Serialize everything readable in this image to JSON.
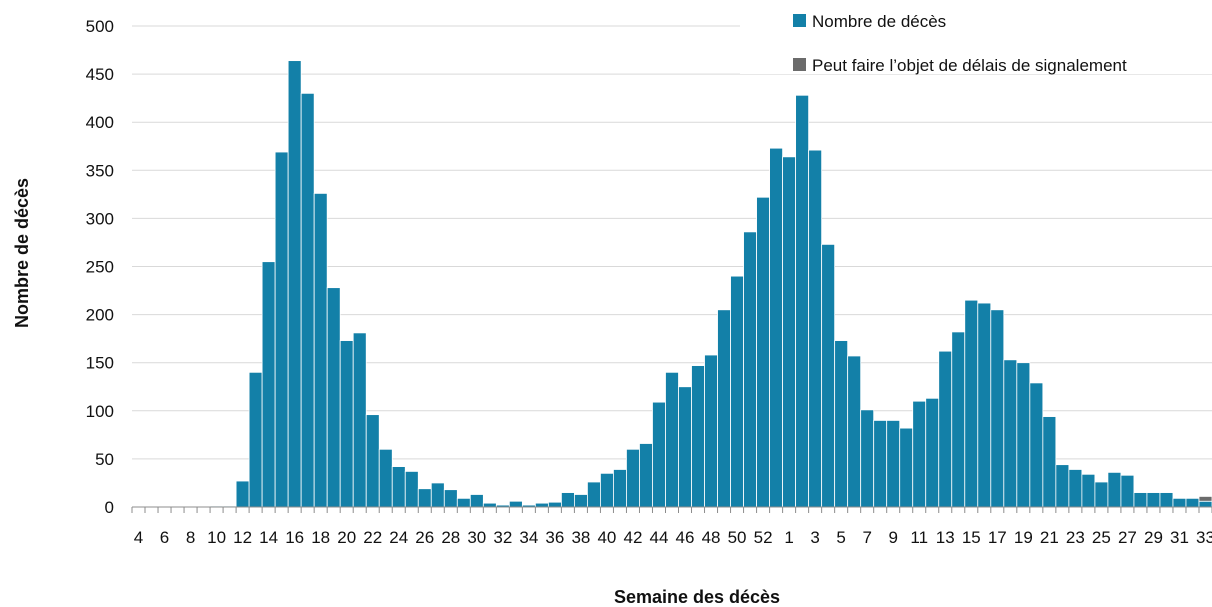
{
  "chart_data": {
    "type": "bar",
    "xlabel": "Semaine des décès",
    "ylabel": "Nombre de décès",
    "ylim": [
      0,
      500
    ],
    "yticks": [
      0,
      50,
      100,
      150,
      200,
      250,
      300,
      350,
      400,
      450,
      500
    ],
    "grid": true,
    "legend_position": "top-right",
    "colors": {
      "deaths": "#1380a8",
      "delay": "#6b6b6b",
      "grid": "#d9d9d9",
      "axis": "#8c8c8c"
    },
    "categories": [
      "4",
      "5",
      "6",
      "7",
      "8",
      "9",
      "10",
      "11",
      "12",
      "13",
      "14",
      "15",
      "16",
      "17",
      "18",
      "19",
      "20",
      "21",
      "22",
      "23",
      "24",
      "25",
      "26",
      "27",
      "28",
      "29",
      "30",
      "31",
      "32",
      "33",
      "34",
      "35",
      "36",
      "37",
      "38",
      "39",
      "40",
      "41",
      "42",
      "43",
      "44",
      "45",
      "46",
      "47",
      "48",
      "49",
      "50",
      "51",
      "52",
      "53",
      "1",
      "2",
      "3",
      "4",
      "5",
      "6",
      "7",
      "8",
      "9",
      "10",
      "11",
      "12",
      "13",
      "14",
      "15",
      "16",
      "17",
      "18",
      "19",
      "20",
      "21",
      "22",
      "23",
      "24",
      "25",
      "26",
      "27",
      "28",
      "29",
      "30",
      "31",
      "32",
      "33"
    ],
    "tick_labels": [
      "4",
      "",
      "6",
      "",
      "8",
      "",
      "10",
      "",
      "12",
      "",
      "14",
      "",
      "16",
      "",
      "18",
      "",
      "20",
      "",
      "22",
      "",
      "24",
      "",
      "26",
      "",
      "28",
      "",
      "30",
      "",
      "32",
      "",
      "34",
      "",
      "36",
      "",
      "38",
      "",
      "40",
      "",
      "42",
      "",
      "44",
      "",
      "46",
      "",
      "48",
      "",
      "50",
      "",
      "52",
      "",
      "1",
      "",
      "3",
      "",
      "5",
      "",
      "7",
      "",
      "9",
      "",
      "11",
      "",
      "13",
      "",
      "15",
      "",
      "17",
      "",
      "19",
      "",
      "21",
      "",
      "23",
      "",
      "25",
      "",
      "27",
      "",
      "29",
      "",
      "31",
      "",
      "33"
    ],
    "series": [
      {
        "name": "Nombre de décès",
        "color": "#1380a8",
        "values": [
          0,
          0,
          0,
          0,
          0,
          0,
          1,
          1,
          27,
          140,
          255,
          369,
          464,
          430,
          326,
          228,
          173,
          181,
          96,
          60,
          42,
          37,
          19,
          25,
          18,
          9,
          13,
          4,
          2,
          6,
          2,
          4,
          5,
          15,
          13,
          26,
          35,
          39,
          60,
          66,
          109,
          140,
          125,
          147,
          158,
          205,
          240,
          286,
          322,
          373,
          364,
          428,
          371,
          273,
          173,
          157,
          101,
          90,
          90,
          82,
          110,
          113,
          162,
          182,
          215,
          212,
          205,
          153,
          150,
          129,
          94,
          44,
          39,
          34,
          26,
          36,
          33,
          15,
          15,
          15,
          9,
          9,
          6
        ]
      },
      {
        "name": "Peut faire l’objet de délais de signalement",
        "color": "#6b6b6b",
        "values": [
          0,
          0,
          0,
          0,
          0,
          0,
          0,
          0,
          0,
          0,
          0,
          0,
          0,
          0,
          0,
          0,
          0,
          0,
          0,
          0,
          0,
          0,
          0,
          0,
          0,
          0,
          0,
          0,
          0,
          0,
          0,
          0,
          0,
          0,
          0,
          0,
          0,
          0,
          0,
          0,
          0,
          0,
          0,
          0,
          0,
          0,
          0,
          0,
          0,
          0,
          0,
          0,
          0,
          0,
          0,
          0,
          0,
          0,
          0,
          0,
          0,
          0,
          0,
          0,
          0,
          0,
          0,
          0,
          0,
          0,
          0,
          0,
          0,
          0,
          0,
          0,
          0,
          0,
          0,
          0,
          0,
          0,
          5
        ]
      }
    ]
  }
}
